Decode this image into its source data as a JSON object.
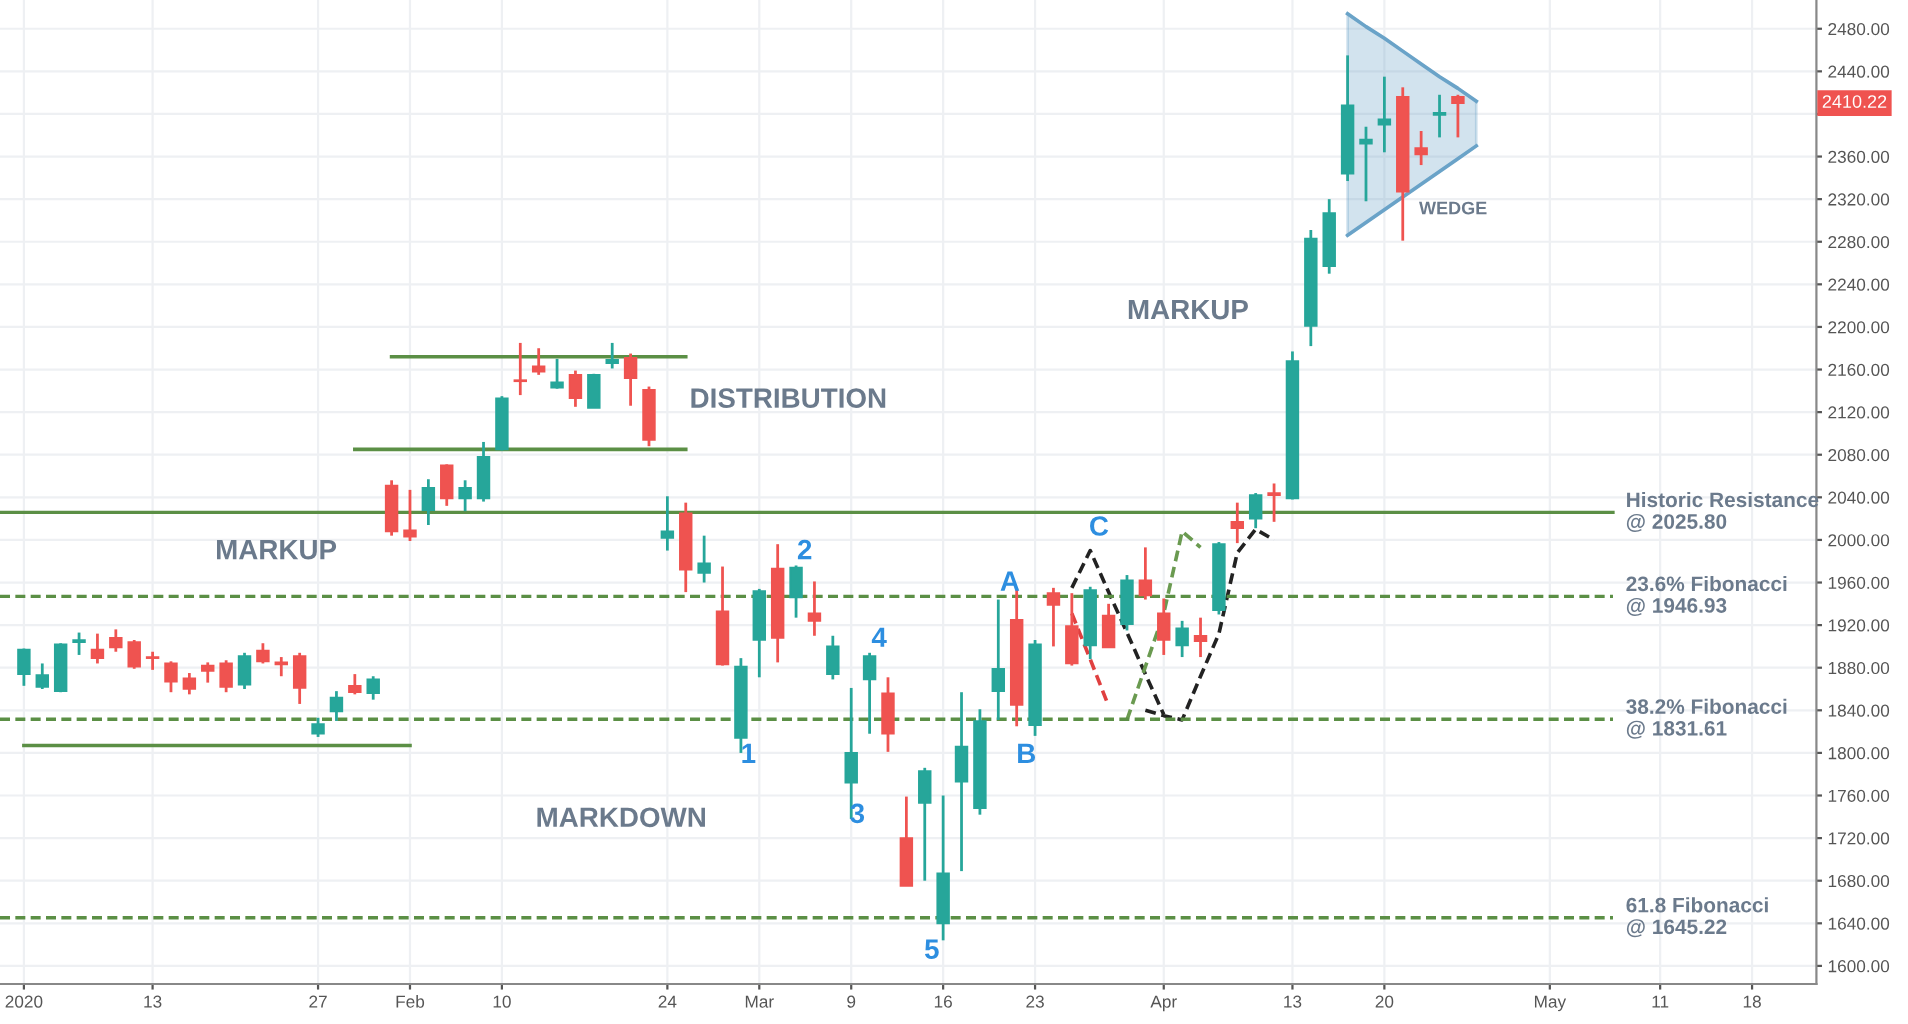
{
  "chart_data": {
    "type": "candlestick",
    "categories": [
      "2020",
      null,
      null,
      null,
      null,
      null,
      null,
      "13",
      null,
      null,
      null,
      null,
      null,
      null,
      null,
      null,
      "27",
      null,
      null,
      null,
      null,
      "Feb",
      null,
      null,
      null,
      null,
      "10",
      null,
      null,
      null,
      null,
      null,
      null,
      null,
      null,
      "24",
      null,
      null,
      null,
      null,
      "Mar",
      null,
      null,
      null,
      null,
      "9",
      null,
      null,
      null,
      null,
      "16",
      null,
      null,
      null,
      null,
      "23",
      null,
      null,
      null,
      null,
      null,
      null,
      "Apr",
      null,
      null,
      null,
      null,
      null,
      null,
      "13",
      null,
      null,
      null,
      null,
      "20",
      null,
      null,
      null,
      null,
      null,
      null,
      null,
      null,
      "May",
      null,
      null,
      null,
      null,
      null,
      "11",
      null,
      null,
      null,
      null,
      "18",
      null,
      null,
      null
    ],
    "ohlc": [
      [
        1874,
        1898,
        1863,
        1897
      ],
      [
        1862,
        1884,
        1860,
        1873
      ],
      [
        1858,
        1903,
        1857,
        1902
      ],
      [
        1904,
        1913,
        1892,
        1906
      ],
      [
        1897,
        1912,
        1884,
        1889
      ],
      [
        1908,
        1916,
        1895,
        1899
      ],
      [
        1904,
        1906,
        1879,
        1881
      ],
      [
        1890,
        1895,
        1878,
        1889
      ],
      [
        1884,
        1886,
        1857,
        1867
      ],
      [
        1870,
        1875,
        1855,
        1860
      ],
      [
        1882,
        1885,
        1866,
        1877
      ],
      [
        1884,
        1887,
        1857,
        1862
      ],
      [
        1864,
        1894,
        1860,
        1891
      ],
      [
        1896,
        1903,
        1884,
        1886
      ],
      [
        1885,
        1890,
        1872,
        1883
      ],
      [
        1891,
        1894,
        1846,
        1861
      ],
      [
        1818,
        1833,
        1815,
        1827
      ],
      [
        1839,
        1858,
        1830,
        1852
      ],
      [
        1863,
        1874,
        1855,
        1857
      ],
      [
        1856,
        1872,
        1850,
        1869
      ],
      [
        2051,
        2056,
        2004,
        2008
      ],
      [
        2009,
        2047,
        1999,
        2003
      ],
      [
        2028,
        2057,
        2014,
        2049
      ],
      [
        2070,
        2071,
        2032,
        2039
      ],
      [
        2039,
        2056,
        2027,
        2049
      ],
      [
        2039,
        2092,
        2036,
        2078
      ],
      [
        2085,
        2135,
        2084,
        2133
      ],
      [
        2150,
        2185,
        2136,
        2149
      ],
      [
        2163,
        2180,
        2155,
        2158
      ],
      [
        2143,
        2170,
        2142,
        2148
      ],
      [
        2155,
        2159,
        2125,
        2133
      ],
      [
        2124,
        2156,
        2124,
        2155
      ],
      [
        2166,
        2185,
        2161,
        2169
      ],
      [
        2171,
        2175,
        2126,
        2152
      ],
      [
        2141,
        2144,
        2088,
        2094
      ],
      [
        2002,
        2041,
        1990,
        2008
      ],
      [
        2025,
        2035,
        1951,
        1972
      ],
      [
        1969,
        2004,
        1960,
        1978
      ],
      [
        1933,
        1975,
        1882,
        1883
      ],
      [
        1814,
        1889,
        1800,
        1881
      ],
      [
        1906,
        1954,
        1871,
        1952
      ],
      [
        1973,
        1996,
        1885,
        1908
      ],
      [
        1946,
        1976,
        1927,
        1974
      ],
      [
        1931,
        1961,
        1910,
        1924
      ],
      [
        1874,
        1910,
        1869,
        1900
      ],
      [
        1772,
        1861,
        1738,
        1800
      ],
      [
        1869,
        1894,
        1818,
        1891
      ],
      [
        1856,
        1871,
        1801,
        1818
      ],
      [
        1720,
        1759,
        1675,
        1675
      ],
      [
        1753,
        1786,
        1680,
        1783
      ],
      [
        1640,
        1760,
        1624,
        1687
      ],
      [
        1773,
        1857,
        1689,
        1806
      ],
      [
        1748,
        1841,
        1742,
        1830
      ],
      [
        1858,
        1944,
        1831,
        1879
      ],
      [
        1925,
        1955,
        1825,
        1845
      ],
      [
        1826,
        1906,
        1816,
        1902
      ],
      [
        1950,
        1955,
        1900,
        1939
      ],
      [
        1919,
        1950,
        1882,
        1884
      ],
      [
        1901,
        1956,
        1888,
        1953
      ],
      [
        1929,
        1940,
        1899,
        1899
      ],
      [
        1921,
        1967,
        1915,
        1962
      ],
      [
        1962,
        1993,
        1944,
        1948
      ],
      [
        1931,
        1945,
        1892,
        1906
      ],
      [
        1901,
        1924,
        1890,
        1917
      ],
      [
        1910,
        1927,
        1890,
        1905
      ],
      [
        1934,
        1998,
        1930,
        1996
      ],
      [
        2017,
        2035,
        1997,
        2011
      ],
      [
        2020,
        2044,
        2011,
        2042
      ],
      [
        2044,
        2053,
        2017,
        2042
      ],
      [
        2039,
        2177,
        2038,
        2168
      ],
      [
        2201,
        2291,
        2182,
        2283
      ],
      [
        2257,
        2320,
        2250,
        2307
      ],
      [
        2344,
        2455,
        2337,
        2408
      ],
      [
        2372,
        2388,
        2318,
        2376
      ],
      [
        2390,
        2435,
        2364,
        2395
      ],
      [
        2416,
        2425,
        2281,
        2327
      ],
      [
        2368,
        2384,
        2352,
        2362
      ],
      [
        2399,
        2418,
        2378,
        2401
      ],
      [
        2416,
        2418,
        2378,
        2410.22
      ],
      null,
      null,
      null,
      null,
      null,
      null,
      null,
      null,
      null,
      null,
      null,
      null,
      null,
      null,
      null,
      null,
      null,
      null,
      null
    ],
    "series": [
      {
        "type": "line",
        "color": "#5b8f45",
        "line_style": "solid",
        "values": [
          null,
          null,
          null,
          null,
          null,
          null,
          null,
          null,
          null,
          null,
          null,
          null,
          null,
          null,
          null,
          null,
          null,
          null,
          null,
          null,
          2172,
          2172,
          2172,
          2172,
          2172,
          2172,
          2172,
          2172,
          2172,
          2172,
          2172,
          2172,
          2172,
          2172,
          2172,
          2172,
          2172,
          null,
          null,
          null,
          null,
          null,
          null,
          null,
          null,
          null,
          null,
          null,
          null,
          null,
          null,
          null,
          null,
          null,
          null,
          null,
          null,
          null,
          null,
          null,
          null,
          null,
          null,
          null,
          null,
          null,
          null,
          null,
          null,
          null,
          null,
          null,
          null,
          null,
          null,
          null,
          null,
          null,
          null,
          null,
          null,
          null,
          null,
          null,
          null,
          null,
          null,
          null,
          null,
          null,
          null,
          null,
          null,
          null,
          null,
          null,
          null,
          null
        ]
      },
      {
        "type": "line",
        "color": "#5b8f45",
        "line_style": "solid",
        "values": [
          null,
          null,
          null,
          null,
          null,
          null,
          null,
          null,
          null,
          null,
          null,
          null,
          null,
          null,
          null,
          null,
          null,
          null,
          2085,
          2085,
          2085,
          2085,
          2085,
          2085,
          2085,
          2085,
          2085,
          2085,
          2085,
          2085,
          2085,
          2085,
          2085,
          2085,
          2085,
          2085,
          2085,
          null,
          null,
          null,
          null,
          null,
          null,
          null,
          null,
          null,
          null,
          null,
          null,
          null,
          null,
          null,
          null,
          null,
          null,
          null,
          null,
          null,
          null,
          null,
          null,
          null,
          null,
          null,
          null,
          null,
          null,
          null,
          null,
          null,
          null,
          null,
          null,
          null,
          null,
          null,
          null,
          null,
          null,
          null,
          null,
          null,
          null,
          null,
          null,
          null,
          null,
          null,
          null,
          null,
          null,
          null,
          null,
          null,
          null,
          null,
          null,
          null
        ]
      },
      {
        "type": "line",
        "color": "#5b8f45",
        "line_style": "solid",
        "values": [
          1807,
          1807,
          1807,
          1807,
          1807,
          1807,
          1807,
          1807,
          1807,
          1807,
          1807,
          1807,
          1807,
          1807,
          1807,
          1807,
          1807,
          1807,
          1807,
          1807,
          1807,
          1807,
          null,
          null,
          null,
          null,
          null,
          null,
          null,
          null,
          null,
          null,
          null,
          null,
          null,
          null,
          null,
          null,
          null,
          null,
          null,
          null,
          null,
          null,
          null,
          null,
          null,
          null,
          null,
          null,
          null,
          null,
          null,
          null,
          null,
          null,
          null,
          null,
          null,
          null,
          null,
          null,
          null,
          null,
          null,
          null,
          null,
          null,
          null,
          null,
          null,
          null,
          null,
          null,
          null,
          null,
          null,
          null,
          null,
          null,
          null,
          null,
          null,
          null,
          null,
          null,
          null,
          null,
          null,
          null,
          null,
          null,
          null,
          null,
          null,
          null,
          null,
          null
        ]
      },
      {
        "type": "line",
        "color": "#222222",
        "line_style": "dashed",
        "values": [
          null,
          null,
          null,
          null,
          null,
          null,
          null,
          null,
          null,
          null,
          null,
          null,
          null,
          null,
          null,
          null,
          null,
          null,
          null,
          null,
          null,
          null,
          null,
          null,
          null,
          null,
          null,
          null,
          null,
          null,
          null,
          null,
          null,
          null,
          null,
          null,
          null,
          null,
          null,
          null,
          null,
          null,
          null,
          null,
          null,
          null,
          null,
          null,
          null,
          null,
          null,
          null,
          null,
          null,
          null,
          null,
          null,
          1955,
          1990,
          1951,
          1913,
          1874,
          1836,
          null,
          null,
          null,
          null,
          null,
          null,
          null,
          null,
          null,
          null,
          null,
          null,
          null,
          null,
          null,
          null,
          null,
          null,
          null,
          null,
          null,
          null,
          null,
          null,
          null,
          null,
          null,
          null,
          null,
          null,
          null,
          null,
          null,
          null,
          null
        ]
      },
      {
        "type": "line",
        "color": "#222222",
        "line_style": "dashed",
        "values": [
          null,
          null,
          null,
          null,
          null,
          null,
          null,
          null,
          null,
          null,
          null,
          null,
          null,
          null,
          null,
          null,
          null,
          null,
          null,
          null,
          null,
          null,
          null,
          null,
          null,
          null,
          null,
          null,
          null,
          null,
          null,
          null,
          null,
          null,
          null,
          null,
          null,
          null,
          null,
          null,
          null,
          null,
          null,
          null,
          null,
          null,
          null,
          null,
          null,
          null,
          null,
          null,
          null,
          null,
          null,
          null,
          null,
          null,
          null,
          null,
          null,
          1840,
          1835,
          1831,
          1872,
          1912,
          1988,
          2010,
          2000,
          null,
          null,
          null,
          null,
          null,
          null,
          null,
          null,
          null,
          null,
          null,
          null,
          null,
          null,
          null,
          null,
          null,
          null,
          null,
          null,
          null,
          null,
          null,
          null,
          null,
          null,
          null,
          null,
          null
        ]
      },
      {
        "type": "line",
        "color": "#6a9a50",
        "line_style": "dashed",
        "values": [
          null,
          null,
          null,
          null,
          null,
          null,
          null,
          null,
          null,
          null,
          null,
          null,
          null,
          null,
          null,
          null,
          null,
          null,
          null,
          null,
          null,
          null,
          null,
          null,
          null,
          null,
          null,
          null,
          null,
          null,
          null,
          null,
          null,
          null,
          null,
          null,
          null,
          null,
          null,
          null,
          null,
          null,
          null,
          null,
          null,
          null,
          null,
          null,
          null,
          null,
          null,
          null,
          null,
          null,
          null,
          null,
          null,
          null,
          null,
          null,
          1831,
          1881,
          1931,
          2008,
          1993,
          null,
          null,
          null,
          null,
          null,
          null,
          null,
          null,
          null,
          null,
          null,
          null,
          null,
          null,
          null,
          null,
          null,
          null,
          null,
          null,
          null,
          null,
          null,
          null,
          null,
          null,
          null,
          null,
          null,
          null,
          null,
          null,
          null
        ]
      },
      {
        "type": "line",
        "color": "#e04040",
        "line_style": "dashed",
        "values": [
          null,
          null,
          null,
          null,
          null,
          null,
          null,
          null,
          null,
          null,
          null,
          null,
          null,
          null,
          null,
          null,
          null,
          null,
          null,
          null,
          null,
          null,
          null,
          null,
          null,
          null,
          null,
          null,
          null,
          null,
          null,
          null,
          null,
          null,
          null,
          null,
          null,
          null,
          null,
          null,
          null,
          null,
          null,
          null,
          null,
          null,
          null,
          null,
          null,
          null,
          null,
          null,
          null,
          null,
          null,
          null,
          null,
          1931,
          1888,
          1844,
          null,
          null,
          null,
          null,
          null,
          null,
          null,
          null,
          null,
          null,
          null,
          null,
          null,
          null,
          null,
          null,
          null,
          null,
          null,
          null,
          null,
          null,
          null,
          null,
          null,
          null,
          null,
          null,
          null,
          null,
          null,
          null,
          null,
          null,
          null,
          null,
          null,
          null
        ]
      },
      {
        "type": "line",
        "color": "#6aa3c8",
        "line_style": "solid",
        "values": [
          null,
          null,
          null,
          null,
          null,
          null,
          null,
          null,
          null,
          null,
          null,
          null,
          null,
          null,
          null,
          null,
          null,
          null,
          null,
          null,
          null,
          null,
          null,
          null,
          null,
          null,
          null,
          null,
          null,
          null,
          null,
          null,
          null,
          null,
          null,
          null,
          null,
          null,
          null,
          null,
          null,
          null,
          null,
          null,
          null,
          null,
          null,
          null,
          null,
          null,
          null,
          null,
          null,
          null,
          null,
          null,
          null,
          null,
          null,
          null,
          null,
          null,
          null,
          null,
          null,
          null,
          null,
          null,
          null,
          null,
          null,
          null,
          2494,
          2482,
          2471,
          2459,
          2447,
          2435,
          2424,
          2412,
          null,
          null,
          null,
          null,
          null,
          null,
          null,
          null,
          null,
          null,
          null,
          null,
          null,
          null,
          null,
          null,
          null,
          null
        ]
      },
      {
        "type": "line",
        "color": "#6aa3c8",
        "line_style": "solid",
        "values": [
          null,
          null,
          null,
          null,
          null,
          null,
          null,
          null,
          null,
          null,
          null,
          null,
          null,
          null,
          null,
          null,
          null,
          null,
          null,
          null,
          null,
          null,
          null,
          null,
          null,
          null,
          null,
          null,
          null,
          null,
          null,
          null,
          null,
          null,
          null,
          null,
          null,
          null,
          null,
          null,
          null,
          null,
          null,
          null,
          null,
          null,
          null,
          null,
          null,
          null,
          null,
          null,
          null,
          null,
          null,
          null,
          null,
          null,
          null,
          null,
          null,
          null,
          null,
          null,
          null,
          null,
          null,
          null,
          null,
          null,
          null,
          null,
          2286,
          2298,
          2310,
          2322,
          2334,
          2346,
          2358,
          2370,
          null,
          null,
          null,
          null,
          null,
          null,
          null,
          null,
          null,
          null,
          null,
          null,
          null,
          null,
          null,
          null,
          null,
          null
        ]
      }
    ],
    "ref_lines": [
      {
        "axis": "y",
        "value": 2025.8,
        "label": "Historic Resistance\n@ 2025.80",
        "color": "#5b8f45",
        "line_style": "solid"
      },
      {
        "axis": "y",
        "value": 1946.93,
        "label": "23.6% Fibonacci\n@ 1946.93",
        "color": "#5b8f45",
        "line_style": "dashed"
      },
      {
        "axis": "y",
        "value": 1831.61,
        "label": "38.2% Fibonacci\n@ 1831.61",
        "color": "#5b8f45",
        "line_style": "dashed"
      },
      {
        "axis": "y",
        "value": 1645.22,
        "label": "61.8 Fibonacci\n@ 1645.22",
        "color": "#5b8f45",
        "line_style": "dashed"
      }
    ],
    "annotations": [
      "MARKUP",
      "DISTRIBUTION",
      "MARKDOWN",
      "MARKUP",
      "1",
      "2",
      "3",
      "4",
      "5",
      "A",
      "B",
      "C",
      "WEDGE",
      "2410.22"
    ],
    "ylim": [
      1583,
      2507
    ],
    "yticks": [
      {
        "value": 1600,
        "label": "1600.00"
      },
      {
        "value": 1640,
        "label": "1640.00"
      },
      {
        "value": 1680,
        "label": "1680.00"
      },
      {
        "value": 1720,
        "label": "1720.00"
      },
      {
        "value": 1760,
        "label": "1760.00"
      },
      {
        "value": 1800,
        "label": "1800.00"
      },
      {
        "value": 1840,
        "label": "1840.00"
      },
      {
        "value": 1880,
        "label": "1880.00"
      },
      {
        "value": 1920,
        "label": "1920.00"
      },
      {
        "value": 1960,
        "label": "1960.00"
      },
      {
        "value": 2000,
        "label": "2000.00"
      },
      {
        "value": 2040,
        "label": "2040.00"
      },
      {
        "value": 2080,
        "label": "2080.00"
      },
      {
        "value": 2120,
        "label": "2120.00"
      },
      {
        "value": 2160,
        "label": "2160.00"
      },
      {
        "value": 2200,
        "label": "2200.00"
      },
      {
        "value": 2240,
        "label": "2240.00"
      },
      {
        "value": 2280,
        "label": "2280.00"
      },
      {
        "value": 2320,
        "label": "2320.00"
      },
      {
        "value": 2360,
        "label": "2360.00"
      },
      {
        "value": 2400,
        "label": null
      },
      {
        "value": 2440,
        "label": "2440.00"
      },
      {
        "value": 2480,
        "label": "2480.00"
      }
    ],
    "grid": true
  }
}
